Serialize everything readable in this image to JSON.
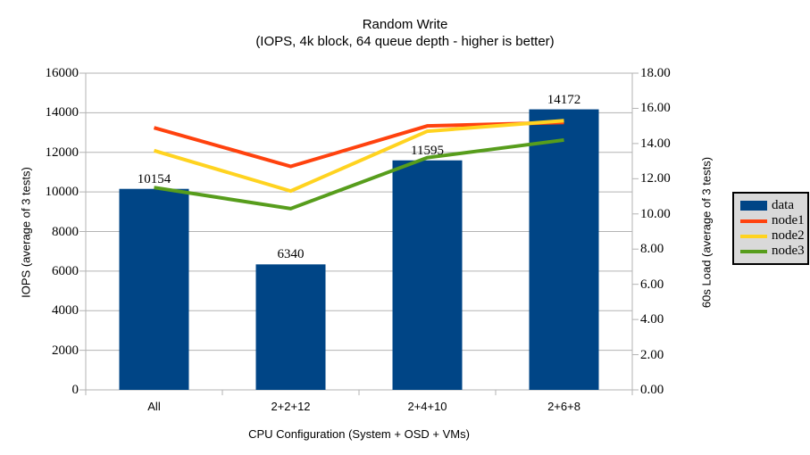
{
  "page": {
    "background": "#ffffff"
  },
  "chart_data": {
    "type": "bar",
    "combo": "bar+line",
    "title": "Random Write",
    "subtitle": "(IOPS, 4k block, 64 queue depth - higher is better)",
    "categories": [
      "All",
      "2+2+12",
      "2+4+10",
      "2+6+8"
    ],
    "bar_series": {
      "name": "data",
      "axis": "left",
      "color": "#004586",
      "values": [
        10154,
        6340,
        11595,
        14172
      ],
      "labels": [
        "10154",
        "6340",
        "11595",
        "14172"
      ]
    },
    "line_series": [
      {
        "name": "node1",
        "axis": "right",
        "color": "#ff420e",
        "values": [
          14.9,
          12.7,
          15.0,
          15.2
        ]
      },
      {
        "name": "node2",
        "axis": "right",
        "color": "#ffd320",
        "values": [
          13.6,
          11.3,
          14.7,
          15.3
        ]
      },
      {
        "name": "node3",
        "axis": "right",
        "color": "#579d1c",
        "values": [
          11.5,
          10.3,
          13.2,
          14.2
        ]
      }
    ],
    "left_axis": {
      "title": "IOPS (average of 3 tests)",
      "min": 0,
      "max": 16000,
      "step": 2000,
      "tick_labels": [
        "0",
        "2000",
        "4000",
        "6000",
        "8000",
        "10000",
        "12000",
        "14000",
        "16000"
      ]
    },
    "right_axis": {
      "title": "60s Load (average of 3 tests)",
      "min": 0,
      "max": 18,
      "step": 2,
      "tick_labels": [
        "0.00",
        "2.00",
        "4.00",
        "6.00",
        "8.00",
        "10.00",
        "12.00",
        "14.00",
        "16.00",
        "18.00"
      ]
    },
    "x_axis": {
      "title": "CPU Configuration (System + OSD + VMs)"
    },
    "legend": {
      "position": "right",
      "background": "#d9d9d9",
      "border_color": "#000000",
      "entries": [
        {
          "label": "data",
          "swatch": "box",
          "color": "#004586"
        },
        {
          "label": "node1",
          "swatch": "line",
          "color": "#ff420e"
        },
        {
          "label": "node2",
          "swatch": "line",
          "color": "#ffd320"
        },
        {
          "label": "node3",
          "swatch": "line",
          "color": "#579d1c"
        }
      ]
    },
    "grid": {
      "horizontal": true,
      "vertical": false,
      "color": "#b3b3b3",
      "axis_color": "#b3b3b3"
    }
  }
}
